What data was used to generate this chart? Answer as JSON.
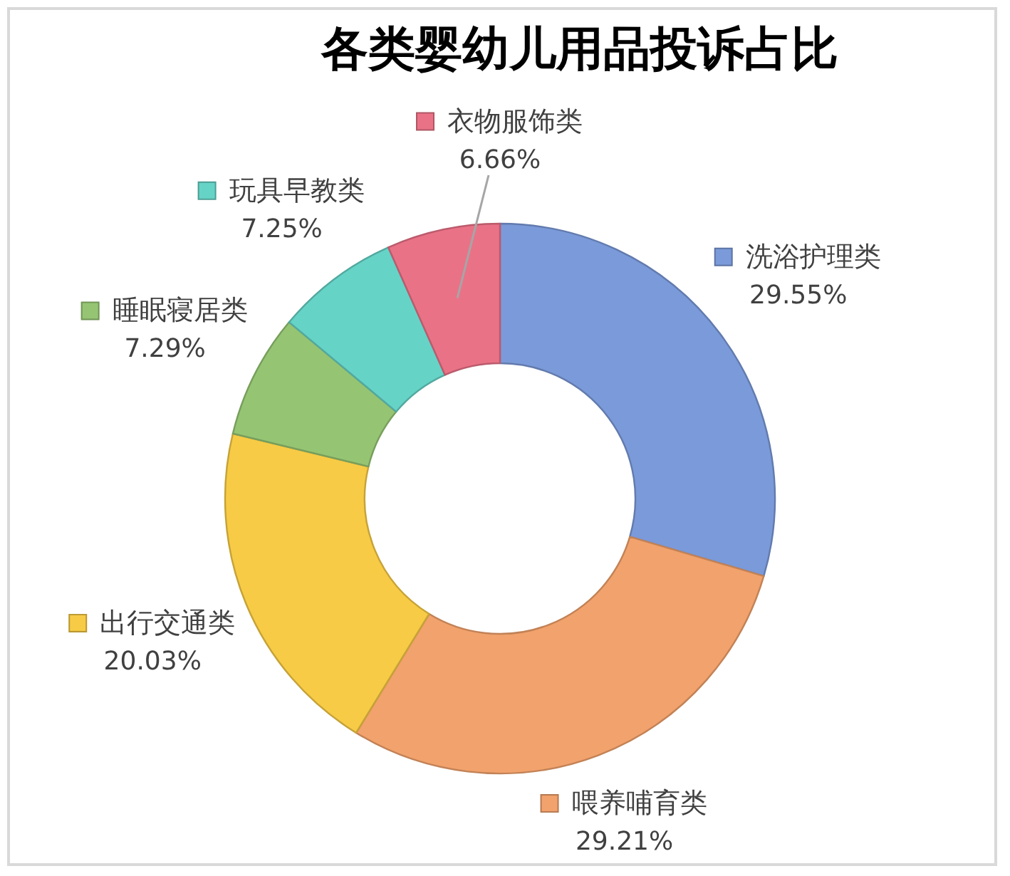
{
  "chart_data": {
    "type": "donut",
    "title": "各类婴幼儿用品投诉占比",
    "categories": [
      "洗浴护理类",
      "喂养哺育类",
      "出行交通类",
      "睡眠寝居类",
      "玩具早教类",
      "衣物服饰类"
    ],
    "values": [
      29.55,
      29.21,
      20.03,
      7.29,
      7.25,
      6.66
    ],
    "value_labels": [
      "29.55%",
      "29.21%",
      "20.03%",
      "7.29%",
      "7.25%",
      "6.66%"
    ],
    "colors": [
      "#7b9ad9",
      "#f2a26c",
      "#f7cb45",
      "#95c573",
      "#66d3c7",
      "#ea7287"
    ],
    "legend": "top left"
  }
}
